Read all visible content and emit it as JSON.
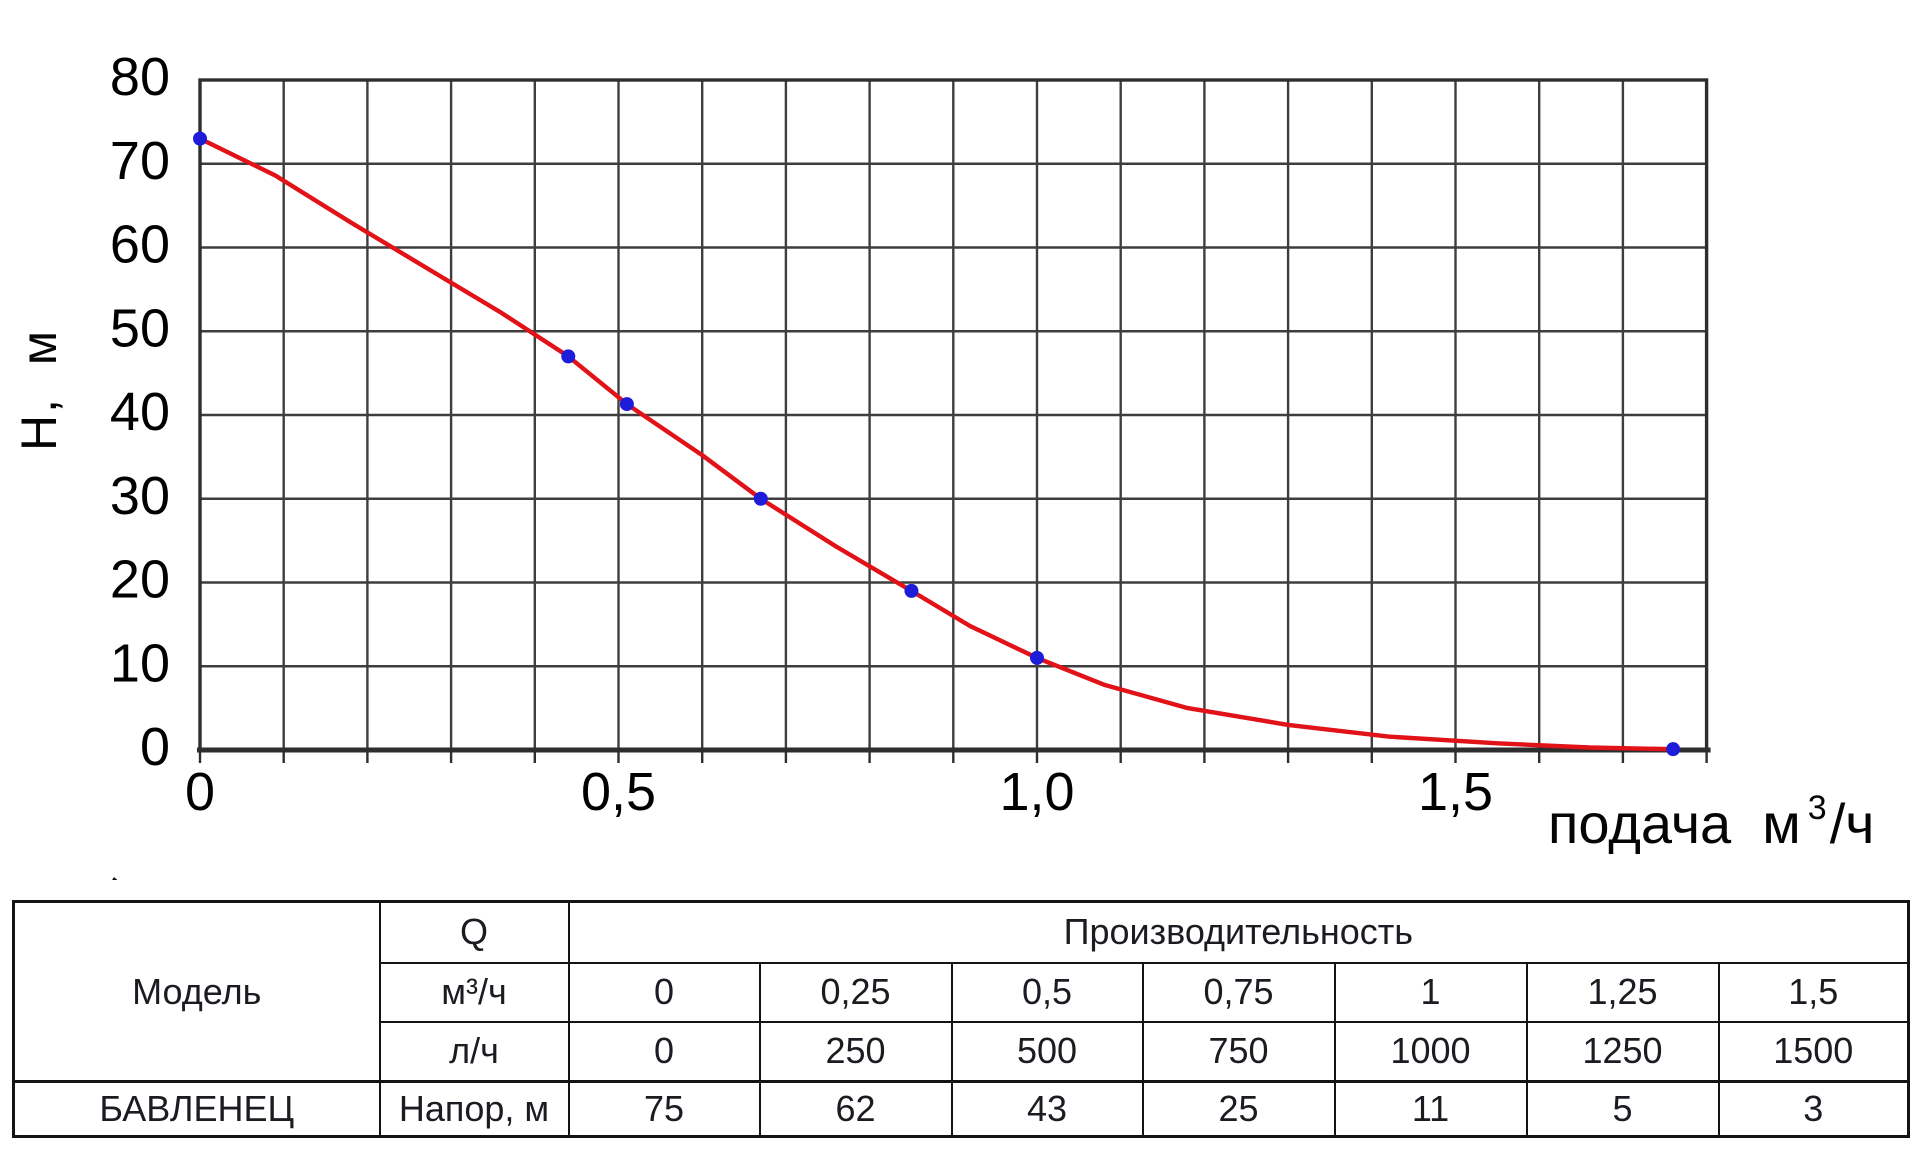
{
  "chart_data": {
    "type": "line",
    "title": "",
    "ylabel": "Н,  м",
    "xlabel": "подача, м³/ч",
    "xlabel_parts": {
      "pre": "подача  м",
      "sup": "3",
      "post": "/ч"
    },
    "xlim": [
      0,
      1.8
    ],
    "ylim": [
      0,
      80
    ],
    "grid_step_x": 0.1,
    "grid_step_y": 10,
    "grid": true,
    "legend": "none",
    "x_ticks": [
      {
        "v": 0,
        "label": "0"
      },
      {
        "v": 0.5,
        "label": "0,5"
      },
      {
        "v": 1.0,
        "label": "1,0"
      },
      {
        "v": 1.5,
        "label": "1,5"
      }
    ],
    "y_ticks": [
      {
        "v": 0,
        "label": "0"
      },
      {
        "v": 10,
        "label": "10"
      },
      {
        "v": 20,
        "label": "20"
      },
      {
        "v": 30,
        "label": "30"
      },
      {
        "v": 40,
        "label": "40"
      },
      {
        "v": 50,
        "label": "50"
      },
      {
        "v": 60,
        "label": "60"
      },
      {
        "v": 70,
        "label": "70"
      },
      {
        "v": 80,
        "label": "80"
      }
    ],
    "series": [
      {
        "name": "pump-head-curve",
        "curve": [
          [
            0,
            73
          ],
          [
            0.09,
            68.6
          ],
          [
            0.18,
            63
          ],
          [
            0.27,
            57.6
          ],
          [
            0.36,
            52.2
          ],
          [
            0.44,
            47
          ],
          [
            0.51,
            41.3
          ],
          [
            0.6,
            35.2
          ],
          [
            0.67,
            30
          ],
          [
            0.76,
            24.3
          ],
          [
            0.85,
            19
          ],
          [
            0.92,
            14.8
          ],
          [
            1.0,
            11
          ],
          [
            1.08,
            7.8
          ],
          [
            1.18,
            5.0
          ],
          [
            1.3,
            3.0
          ],
          [
            1.42,
            1.6
          ],
          [
            1.55,
            0.8
          ],
          [
            1.66,
            0.3
          ],
          [
            1.76,
            0.1
          ]
        ],
        "markers": [
          [
            0,
            73
          ],
          [
            0.44,
            47
          ],
          [
            0.51,
            41.3
          ],
          [
            0.67,
            30
          ],
          [
            0.85,
            19
          ],
          [
            1.0,
            11
          ],
          [
            1.76,
            0.1
          ]
        ]
      }
    ],
    "colors": {
      "curve": "#e11218",
      "marker": "#1d1cd8",
      "grid": "#3e3e3e",
      "axis": "#2e2e2e",
      "text": "#000000"
    }
  },
  "table": {
    "col_model": "Модель",
    "col_q": "Q",
    "col_perf": "Производительность",
    "rows": [
      {
        "label": "м³/ч",
        "values": [
          "0",
          "0,25",
          "0,5",
          "0,75",
          "1",
          "1,25",
          "1,5"
        ]
      },
      {
        "label": "л/ч",
        "values": [
          "0",
          "250",
          "500",
          "750",
          "1000",
          "1250",
          "1500"
        ]
      }
    ],
    "model_row": {
      "model": "БАВЛЕНЕЦ",
      "label": "Напор, м",
      "values": [
        "75",
        "62",
        "43",
        "25",
        "11",
        "5",
        "3"
      ]
    }
  }
}
